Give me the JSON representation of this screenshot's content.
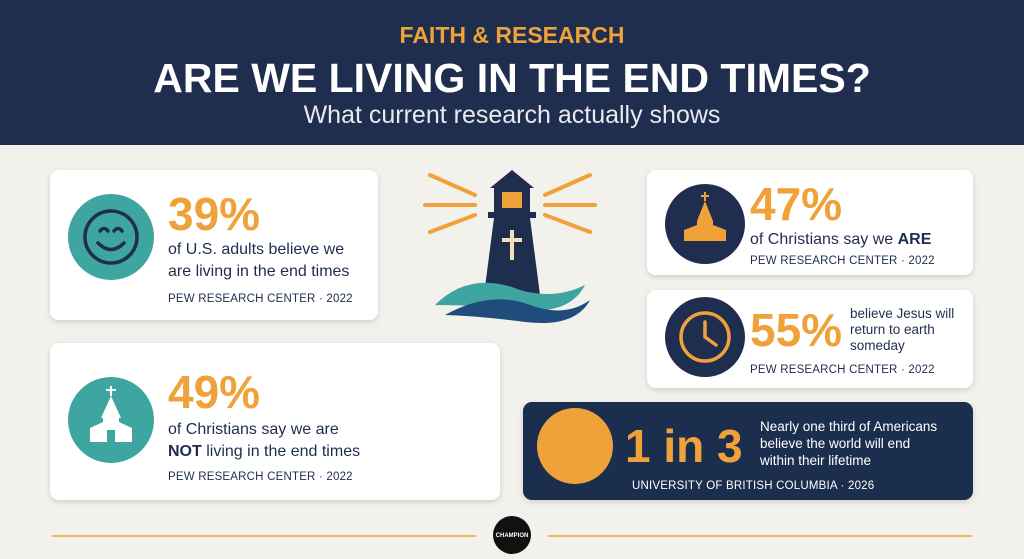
{
  "header": {
    "kicker": "FAITH & RESEARCH",
    "title": "ARE WE LIVING IN THE END TIMES?",
    "subtitle": "What current research actually shows"
  },
  "cards": [
    {
      "stat": "39%",
      "lines": [
        "of U.S. adults believe we",
        "are living in the end times"
      ],
      "source": "PEW RESEARCH CENTER · 2022"
    },
    {
      "stat": "49%",
      "lines": [
        "of Christians say we are",
        "NOT",
        " living in the end times"
      ],
      "source": "PEW RESEARCH CENTER · 2022"
    },
    {
      "stat": "47%",
      "lines": [
        "of Christians say we ",
        "ARE"
      ],
      "source": "PEW RESEARCH CENTER · 2022"
    },
    {
      "stat": "55%",
      "lines": [
        "believe Jesus will",
        "return to earth",
        "someday"
      ],
      "source": "PEW RESEARCH CENTER · 2022"
    },
    {
      "stat": "1 in 3",
      "lines": [
        "Nearly one third of Americans",
        "believe the world will end",
        "within their lifetime"
      ],
      "source": "UNIVERSITY OF BRITISH COLUMBIA · 2026"
    }
  ],
  "logo": "CHAMPION"
}
